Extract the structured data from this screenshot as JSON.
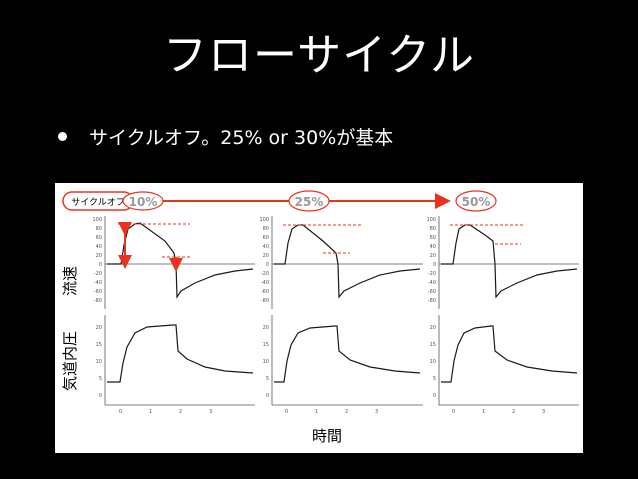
{
  "slide": {
    "title": "フローサイクル",
    "bullet": "サイクルオフ。25% or 30%が基本"
  },
  "figure": {
    "cycle_off_label": "サイクルオフ",
    "panels": [
      {
        "cycle_off": "10%",
        "flow_ticks": [
          "100",
          "80",
          "60",
          "40",
          "20",
          "0",
          "-20",
          "-40",
          "-60",
          "-80"
        ],
        "pressure_ticks": [
          "20",
          "15",
          "10",
          "5",
          "0"
        ],
        "time_ticks": [
          "0",
          "1",
          "2",
          "3"
        ]
      },
      {
        "cycle_off": "25%",
        "flow_ticks": [
          "100",
          "80",
          "60",
          "40",
          "20",
          "0",
          "-20",
          "-40",
          "-60",
          "-80"
        ],
        "pressure_ticks": [
          "20",
          "15",
          "10",
          "5",
          "0"
        ],
        "time_ticks": [
          "0",
          "1",
          "2",
          "3"
        ]
      },
      {
        "cycle_off": "50%",
        "flow_ticks": [
          "100",
          "80",
          "60",
          "40",
          "20",
          "0",
          "-20",
          "-40",
          "-60",
          "-80"
        ],
        "pressure_ticks": [
          "20",
          "15",
          "10",
          "5",
          "0"
        ],
        "time_ticks": [
          "0",
          "1",
          "2",
          "3"
        ]
      }
    ],
    "flow_label": "流速",
    "pressure_label": "気道内圧",
    "time_label": "時間"
  },
  "colors": {
    "background": "#000000",
    "text": "#ffffff",
    "accent_red": "#e8341f",
    "trace": "#1a1a1a",
    "grid": "#bdbdbd"
  }
}
